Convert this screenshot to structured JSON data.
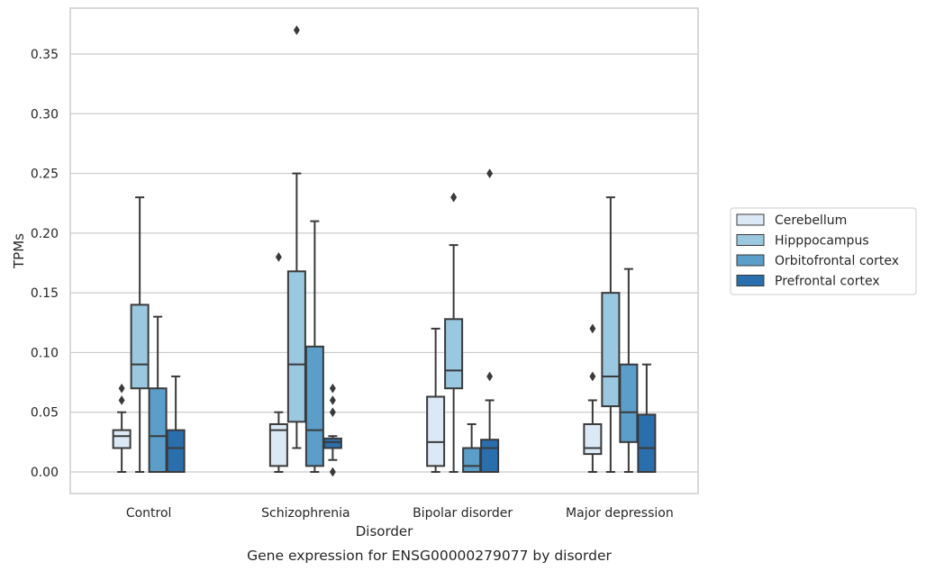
{
  "chart_data": {
    "type": "boxplot",
    "xlabel": "Disorder",
    "ylabel": "TPMs",
    "caption": "Gene expression for ENSG00000279077 by disorder",
    "ylim": [
      -0.018,
      0.389
    ],
    "yticks": [
      0.0,
      0.05,
      0.1,
      0.15,
      0.2,
      0.25,
      0.3,
      0.35
    ],
    "ytick_labels": [
      "0.00",
      "0.05",
      "0.10",
      "0.15",
      "0.20",
      "0.25",
      "0.30",
      "0.35"
    ],
    "grid": "horizontal",
    "legend_position": "right",
    "categories": [
      "Control",
      "Schizophrenia",
      "Bipolar disorder",
      "Major depression"
    ],
    "series": [
      {
        "name": "Cerebellum",
        "color": "#dbe9f6",
        "boxes": [
          {
            "whislo": 0.0,
            "q1": 0.02,
            "med": 0.03,
            "q3": 0.035,
            "whishi": 0.05,
            "fliers": [
              0.06,
              0.07
            ]
          },
          {
            "whislo": 0.0,
            "q1": 0.005,
            "med": 0.035,
            "q3": 0.04,
            "whishi": 0.05,
            "fliers": [
              0.18
            ]
          },
          {
            "whislo": 0.0,
            "q1": 0.005,
            "med": 0.025,
            "q3": 0.063,
            "whishi": 0.12,
            "fliers": []
          },
          {
            "whislo": 0.0,
            "q1": 0.015,
            "med": 0.02,
            "q3": 0.04,
            "whishi": 0.06,
            "fliers": [
              0.08,
              0.12
            ]
          }
        ]
      },
      {
        "name": "Hipppocampus",
        "color": "#9ac8e0",
        "boxes": [
          {
            "whislo": 0.0,
            "q1": 0.07,
            "med": 0.09,
            "q3": 0.14,
            "whishi": 0.23,
            "fliers": []
          },
          {
            "whislo": 0.02,
            "q1": 0.042,
            "med": 0.09,
            "q3": 0.168,
            "whishi": 0.25,
            "fliers": [
              0.37
            ]
          },
          {
            "whislo": 0.0,
            "q1": 0.07,
            "med": 0.085,
            "q3": 0.128,
            "whishi": 0.19,
            "fliers": [
              0.23,
              0.23
            ]
          },
          {
            "whislo": 0.0,
            "q1": 0.055,
            "med": 0.08,
            "q3": 0.15,
            "whishi": 0.23,
            "fliers": []
          }
        ]
      },
      {
        "name": "Orbitofrontal cortex",
        "color": "#5a9ec9",
        "boxes": [
          {
            "whislo": 0.0,
            "q1": 0.0,
            "med": 0.03,
            "q3": 0.07,
            "whishi": 0.13,
            "fliers": []
          },
          {
            "whislo": 0.0,
            "q1": 0.005,
            "med": 0.035,
            "q3": 0.105,
            "whishi": 0.21,
            "fliers": []
          },
          {
            "whislo": 0.0,
            "q1": 0.0,
            "med": 0.005,
            "q3": 0.02,
            "whishi": 0.04,
            "fliers": []
          },
          {
            "whislo": 0.0,
            "q1": 0.025,
            "med": 0.05,
            "q3": 0.09,
            "whishi": 0.17,
            "fliers": []
          }
        ]
      },
      {
        "name": "Prefrontal cortex",
        "color": "#2a6fad",
        "boxes": [
          {
            "whislo": 0.0,
            "q1": 0.0,
            "med": 0.02,
            "q3": 0.035,
            "whishi": 0.08,
            "fliers": []
          },
          {
            "whislo": 0.01,
            "q1": 0.02,
            "med": 0.025,
            "q3": 0.028,
            "whishi": 0.03,
            "fliers": [
              0.0,
              0.05,
              0.06,
              0.07
            ]
          },
          {
            "whislo": 0.0,
            "q1": 0.0,
            "med": 0.02,
            "q3": 0.027,
            "whishi": 0.06,
            "fliers": [
              0.08,
              0.25
            ]
          },
          {
            "whislo": 0.0,
            "q1": 0.0,
            "med": 0.02,
            "q3": 0.048,
            "whishi": 0.09,
            "fliers": []
          }
        ]
      }
    ]
  }
}
